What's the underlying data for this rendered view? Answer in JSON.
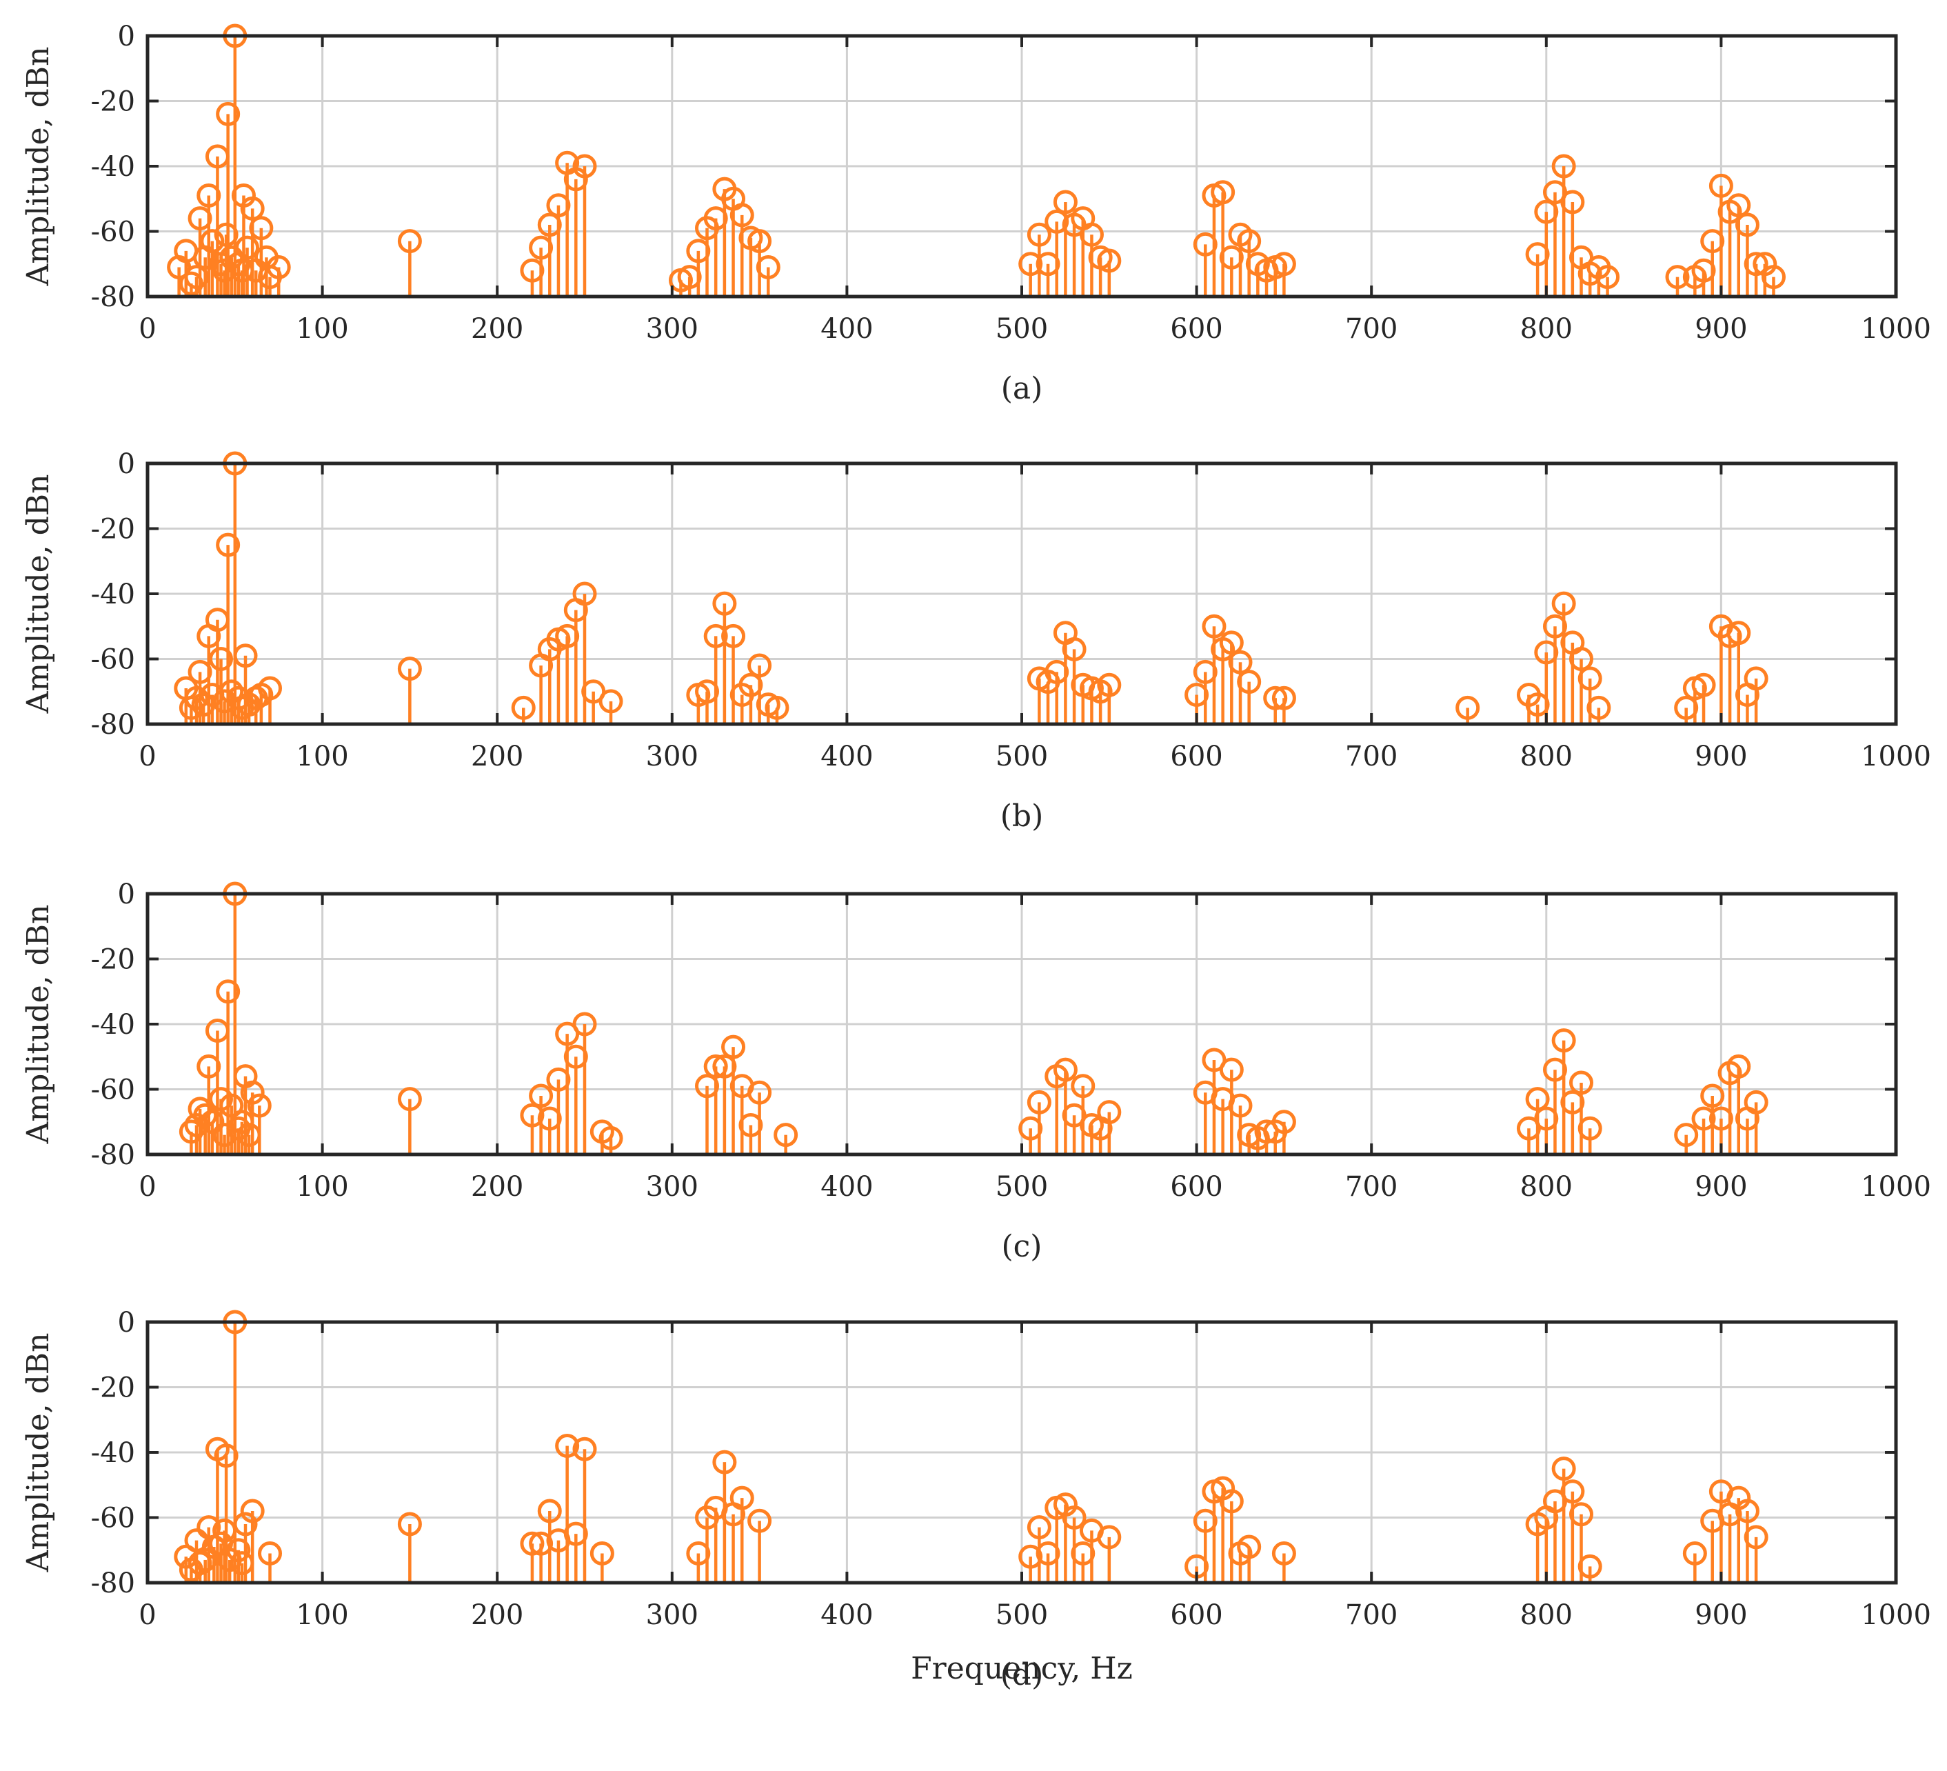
{
  "figure": {
    "xlabel": "Frequency, Hz",
    "colors": {
      "stem": "#FF8022",
      "axis": "#262626",
      "grid": "#D0D0D0"
    }
  },
  "chart_data": [
    {
      "type": "stem",
      "caption": "(a)",
      "ylabel": "Amplitude, dBn",
      "xlim": [
        0,
        1000
      ],
      "ylim": [
        -80,
        0
      ],
      "xticks": [
        0,
        100,
        200,
        300,
        400,
        500,
        600,
        700,
        800,
        900,
        1000
      ],
      "yticks": [
        0,
        -20,
        -40,
        -60,
        -80
      ],
      "grid": true,
      "points": [
        [
          18,
          -71
        ],
        [
          22,
          -66
        ],
        [
          25,
          -76
        ],
        [
          28,
          -74
        ],
        [
          30,
          -56
        ],
        [
          33,
          -68
        ],
        [
          35,
          -49
        ],
        [
          37,
          -63
        ],
        [
          40,
          -37
        ],
        [
          42,
          -70
        ],
        [
          44,
          -72
        ],
        [
          45,
          -61
        ],
        [
          46,
          -24
        ],
        [
          48,
          -68
        ],
        [
          50,
          0
        ],
        [
          52,
          -70
        ],
        [
          54,
          -72
        ],
        [
          55,
          -49
        ],
        [
          57,
          -65
        ],
        [
          60,
          -53
        ],
        [
          62,
          -72
        ],
        [
          65,
          -59
        ],
        [
          68,
          -68
        ],
        [
          70,
          -74
        ],
        [
          75,
          -71
        ],
        [
          150,
          -63
        ],
        [
          220,
          -72
        ],
        [
          225,
          -65
        ],
        [
          230,
          -58
        ],
        [
          235,
          -52
        ],
        [
          240,
          -39
        ],
        [
          245,
          -44
        ],
        [
          250,
          -40
        ],
        [
          305,
          -75
        ],
        [
          310,
          -74
        ],
        [
          315,
          -66
        ],
        [
          320,
          -59
        ],
        [
          325,
          -56
        ],
        [
          330,
          -47
        ],
        [
          335,
          -50
        ],
        [
          340,
          -55
        ],
        [
          345,
          -62
        ],
        [
          350,
          -63
        ],
        [
          355,
          -71
        ],
        [
          505,
          -70
        ],
        [
          510,
          -61
        ],
        [
          515,
          -70
        ],
        [
          520,
          -57
        ],
        [
          525,
          -51
        ],
        [
          530,
          -58
        ],
        [
          535,
          -56
        ],
        [
          540,
          -61
        ],
        [
          545,
          -68
        ],
        [
          550,
          -69
        ],
        [
          605,
          -64
        ],
        [
          610,
          -49
        ],
        [
          615,
          -48
        ],
        [
          620,
          -68
        ],
        [
          625,
          -61
        ],
        [
          630,
          -63
        ],
        [
          635,
          -70
        ],
        [
          640,
          -72
        ],
        [
          645,
          -71
        ],
        [
          650,
          -70
        ],
        [
          795,
          -67
        ],
        [
          800,
          -54
        ],
        [
          805,
          -48
        ],
        [
          810,
          -40
        ],
        [
          815,
          -51
        ],
        [
          820,
          -68
        ],
        [
          825,
          -73
        ],
        [
          830,
          -71
        ],
        [
          835,
          -74
        ],
        [
          875,
          -74
        ],
        [
          885,
          -74
        ],
        [
          890,
          -72
        ],
        [
          895,
          -63
        ],
        [
          900,
          -46
        ],
        [
          905,
          -54
        ],
        [
          910,
          -52
        ],
        [
          915,
          -58
        ],
        [
          920,
          -70
        ],
        [
          925,
          -70
        ],
        [
          930,
          -74
        ]
      ]
    },
    {
      "type": "stem",
      "caption": "(b)",
      "ylabel": "Amplitude, dBn",
      "xlim": [
        0,
        1000
      ],
      "ylim": [
        -80,
        0
      ],
      "xticks": [
        0,
        100,
        200,
        300,
        400,
        500,
        600,
        700,
        800,
        900,
        1000
      ],
      "yticks": [
        0,
        -20,
        -40,
        -60,
        -80
      ],
      "grid": true,
      "points": [
        [
          22,
          -69
        ],
        [
          25,
          -75
        ],
        [
          28,
          -72
        ],
        [
          30,
          -64
        ],
        [
          32,
          -74
        ],
        [
          35,
          -53
        ],
        [
          37,
          -71
        ],
        [
          40,
          -48
        ],
        [
          42,
          -60
        ],
        [
          44,
          -73
        ],
        [
          46,
          -25
        ],
        [
          48,
          -70
        ],
        [
          50,
          0
        ],
        [
          52,
          -72
        ],
        [
          54,
          -75
        ],
        [
          56,
          -59
        ],
        [
          58,
          -74
        ],
        [
          62,
          -72
        ],
        [
          65,
          -71
        ],
        [
          70,
          -69
        ],
        [
          150,
          -63
        ],
        [
          215,
          -75
        ],
        [
          225,
          -62
        ],
        [
          230,
          -57
        ],
        [
          235,
          -54
        ],
        [
          240,
          -53
        ],
        [
          245,
          -45
        ],
        [
          250,
          -40
        ],
        [
          255,
          -70
        ],
        [
          265,
          -73
        ],
        [
          315,
          -71
        ],
        [
          320,
          -70
        ],
        [
          325,
          -53
        ],
        [
          330,
          -43
        ],
        [
          335,
          -53
        ],
        [
          340,
          -71
        ],
        [
          345,
          -68
        ],
        [
          350,
          -62
        ],
        [
          355,
          -74
        ],
        [
          360,
          -75
        ],
        [
          510,
          -66
        ],
        [
          515,
          -67
        ],
        [
          520,
          -64
        ],
        [
          525,
          -52
        ],
        [
          530,
          -57
        ],
        [
          535,
          -68
        ],
        [
          540,
          -69
        ],
        [
          545,
          -70
        ],
        [
          550,
          -68
        ],
        [
          600,
          -71
        ],
        [
          605,
          -64
        ],
        [
          610,
          -50
        ],
        [
          615,
          -57
        ],
        [
          620,
          -55
        ],
        [
          625,
          -61
        ],
        [
          630,
          -67
        ],
        [
          645,
          -72
        ],
        [
          650,
          -72
        ],
        [
          755,
          -75
        ],
        [
          790,
          -71
        ],
        [
          795,
          -74
        ],
        [
          800,
          -58
        ],
        [
          805,
          -50
        ],
        [
          810,
          -43
        ],
        [
          815,
          -55
        ],
        [
          820,
          -60
        ],
        [
          825,
          -66
        ],
        [
          830,
          -75
        ],
        [
          880,
          -75
        ],
        [
          885,
          -69
        ],
        [
          890,
          -68
        ],
        [
          900,
          -50
        ],
        [
          905,
          -53
        ],
        [
          910,
          -52
        ],
        [
          915,
          -71
        ],
        [
          920,
          -66
        ]
      ]
    },
    {
      "type": "stem",
      "caption": "(c)",
      "ylabel": "Amplitude, dBn",
      "xlim": [
        0,
        1000
      ],
      "ylim": [
        -80,
        0
      ],
      "xticks": [
        0,
        100,
        200,
        300,
        400,
        500,
        600,
        700,
        800,
        900,
        1000
      ],
      "yticks": [
        0,
        -20,
        -40,
        -60,
        -80
      ],
      "grid": true,
      "points": [
        [
          25,
          -73
        ],
        [
          28,
          -71
        ],
        [
          30,
          -66
        ],
        [
          33,
          -68
        ],
        [
          35,
          -53
        ],
        [
          37,
          -70
        ],
        [
          40,
          -42
        ],
        [
          42,
          -63
        ],
        [
          44,
          -74
        ],
        [
          46,
          -30
        ],
        [
          48,
          -65
        ],
        [
          50,
          0
        ],
        [
          52,
          -72
        ],
        [
          54,
          -70
        ],
        [
          56,
          -56
        ],
        [
          58,
          -74
        ],
        [
          60,
          -61
        ],
        [
          64,
          -65
        ],
        [
          150,
          -63
        ],
        [
          220,
          -68
        ],
        [
          225,
          -62
        ],
        [
          230,
          -69
        ],
        [
          235,
          -57
        ],
        [
          240,
          -43
        ],
        [
          245,
          -50
        ],
        [
          250,
          -40
        ],
        [
          260,
          -73
        ],
        [
          265,
          -75
        ],
        [
          320,
          -59
        ],
        [
          325,
          -53
        ],
        [
          330,
          -53
        ],
        [
          335,
          -47
        ],
        [
          340,
          -59
        ],
        [
          345,
          -71
        ],
        [
          350,
          -61
        ],
        [
          365,
          -74
        ],
        [
          505,
          -72
        ],
        [
          510,
          -64
        ],
        [
          520,
          -56
        ],
        [
          525,
          -54
        ],
        [
          530,
          -68
        ],
        [
          535,
          -59
        ],
        [
          540,
          -71
        ],
        [
          545,
          -72
        ],
        [
          550,
          -67
        ],
        [
          605,
          -61
        ],
        [
          610,
          -51
        ],
        [
          615,
          -63
        ],
        [
          620,
          -54
        ],
        [
          625,
          -65
        ],
        [
          630,
          -74
        ],
        [
          635,
          -75
        ],
        [
          640,
          -73
        ],
        [
          645,
          -73
        ],
        [
          650,
          -70
        ],
        [
          790,
          -72
        ],
        [
          795,
          -63
        ],
        [
          800,
          -69
        ],
        [
          805,
          -54
        ],
        [
          810,
          -45
        ],
        [
          815,
          -64
        ],
        [
          820,
          -58
        ],
        [
          825,
          -72
        ],
        [
          880,
          -74
        ],
        [
          890,
          -69
        ],
        [
          895,
          -62
        ],
        [
          900,
          -69
        ],
        [
          905,
          -55
        ],
        [
          910,
          -53
        ],
        [
          915,
          -69
        ],
        [
          920,
          -64
        ]
      ]
    },
    {
      "type": "stem",
      "caption": "(d)",
      "ylabel": "Amplitude, dBn",
      "xlim": [
        0,
        1000
      ],
      "ylim": [
        -80,
        0
      ],
      "xticks": [
        0,
        100,
        200,
        300,
        400,
        500,
        600,
        700,
        800,
        900,
        1000
      ],
      "yticks": [
        0,
        -20,
        -40,
        -60,
        -80
      ],
      "grid": true,
      "points": [
        [
          22,
          -72
        ],
        [
          25,
          -76
        ],
        [
          28,
          -67
        ],
        [
          30,
          -74
        ],
        [
          33,
          -73
        ],
        [
          35,
          -63
        ],
        [
          38,
          -69
        ],
        [
          40,
          -39
        ],
        [
          42,
          -68
        ],
        [
          44,
          -64
        ],
        [
          45,
          -41
        ],
        [
          47,
          -73
        ],
        [
          50,
          0
        ],
        [
          52,
          -70
        ],
        [
          54,
          -74
        ],
        [
          56,
          -62
        ],
        [
          60,
          -58
        ],
        [
          70,
          -71
        ],
        [
          150,
          -62
        ],
        [
          220,
          -68
        ],
        [
          225,
          -68
        ],
        [
          230,
          -58
        ],
        [
          235,
          -67
        ],
        [
          240,
          -38
        ],
        [
          245,
          -65
        ],
        [
          250,
          -39
        ],
        [
          260,
          -71
        ],
        [
          315,
          -71
        ],
        [
          320,
          -60
        ],
        [
          325,
          -57
        ],
        [
          330,
          -43
        ],
        [
          335,
          -59
        ],
        [
          340,
          -54
        ],
        [
          350,
          -61
        ],
        [
          505,
          -72
        ],
        [
          510,
          -63
        ],
        [
          515,
          -71
        ],
        [
          520,
          -57
        ],
        [
          525,
          -56
        ],
        [
          530,
          -60
        ],
        [
          535,
          -71
        ],
        [
          540,
          -64
        ],
        [
          550,
          -66
        ],
        [
          600,
          -75
        ],
        [
          605,
          -61
        ],
        [
          610,
          -52
        ],
        [
          615,
          -51
        ],
        [
          620,
          -55
        ],
        [
          625,
          -71
        ],
        [
          630,
          -69
        ],
        [
          650,
          -71
        ],
        [
          795,
          -62
        ],
        [
          800,
          -60
        ],
        [
          805,
          -55
        ],
        [
          810,
          -45
        ],
        [
          815,
          -52
        ],
        [
          820,
          -59
        ],
        [
          825,
          -75
        ],
        [
          885,
          -71
        ],
        [
          895,
          -61
        ],
        [
          900,
          -52
        ],
        [
          905,
          -59
        ],
        [
          910,
          -54
        ],
        [
          915,
          -58
        ],
        [
          920,
          -66
        ]
      ]
    }
  ]
}
